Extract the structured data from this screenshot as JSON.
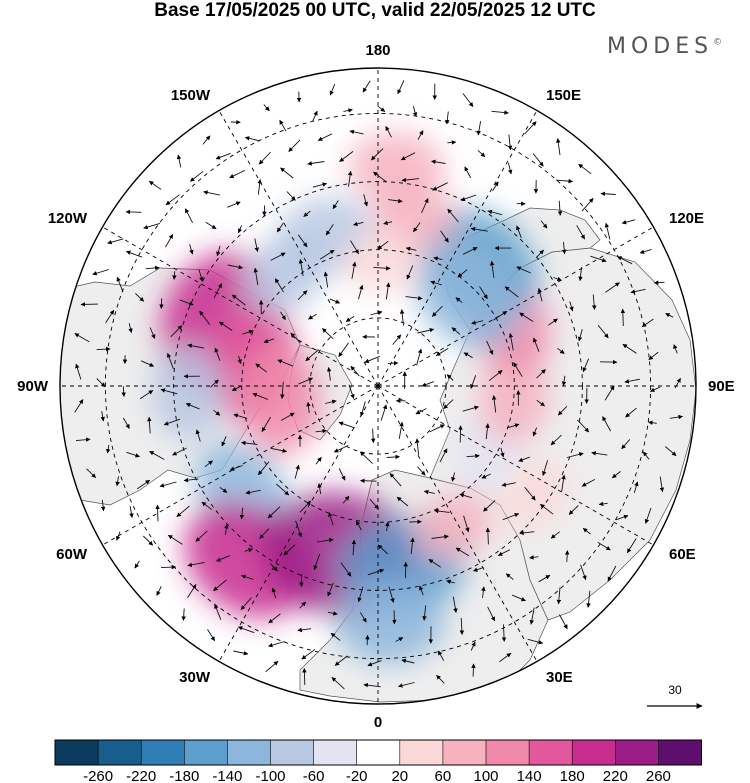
{
  "title": "Base 17/05/2025 00 UTC, valid 22/05/2025 12 UTC",
  "brand": {
    "name": "MODES",
    "mark": "©"
  },
  "longitude_labels": [
    {
      "text": "180",
      "lon": 180
    },
    {
      "text": "150E",
      "lon": 150
    },
    {
      "text": "120E",
      "lon": 120
    },
    {
      "text": "90E",
      "lon": 90
    },
    {
      "text": "60E",
      "lon": 60
    },
    {
      "text": "30E",
      "lon": 30
    },
    {
      "text": "0",
      "lon": 0
    },
    {
      "text": "30W",
      "lon": -30
    },
    {
      "text": "60W",
      "lon": -60
    },
    {
      "text": "90W",
      "lon": -90
    },
    {
      "text": "120W",
      "lon": -120
    },
    {
      "text": "150W",
      "lon": -150
    }
  ],
  "vector_scale": {
    "value": "30"
  },
  "colorbar": {
    "colors": [
      "#0c3b5e",
      "#195d8c",
      "#2f7fb6",
      "#5c9fcd",
      "#8db6dc",
      "#b9c8e3",
      "#e3e3f1",
      "#ffffff",
      "#fbd9d9",
      "#f6b2bf",
      "#f089aa",
      "#e3589d",
      "#c82c8f",
      "#9b1c86",
      "#5e0f6e"
    ],
    "ticks": [
      "-260",
      "-220",
      "-180",
      "-140",
      "-100",
      "-60",
      "-20",
      "20",
      "60",
      "100",
      "140",
      "180",
      "220",
      "260"
    ]
  },
  "anomalies": [
    {
      "lon": -112,
      "lat": 52,
      "value": 200
    },
    {
      "lon": -100,
      "lat": 62,
      "value": 140
    },
    {
      "lon": -82,
      "lat": 68,
      "value": 120
    },
    {
      "lon": -88,
      "lat": 48,
      "value": -90
    },
    {
      "lon": -52,
      "lat": 52,
      "value": -120
    },
    {
      "lon": -37,
      "lat": 42,
      "value": 180
    },
    {
      "lon": -12,
      "lat": 52,
      "value": 240
    },
    {
      "lon": 8,
      "lat": 50,
      "value": -160
    },
    {
      "lon": 3,
      "lat": 38,
      "value": -120
    },
    {
      "lon": 28,
      "lat": 55,
      "value": 60
    },
    {
      "lon": 55,
      "lat": 48,
      "value": 50
    },
    {
      "lon": 60,
      "lat": 62,
      "value": -60
    },
    {
      "lon": 85,
      "lat": 60,
      "value": 80
    },
    {
      "lon": 115,
      "lat": 58,
      "value": 100
    },
    {
      "lon": 140,
      "lat": 55,
      "value": -160
    },
    {
      "lon": 135,
      "lat": 62,
      "value": -140
    },
    {
      "lon": 168,
      "lat": 52,
      "value": 60
    },
    {
      "lon": 175,
      "lat": 42,
      "value": 90
    },
    {
      "lon": -160,
      "lat": 55,
      "value": -100
    },
    {
      "lon": -140,
      "lat": 58,
      "value": -80
    },
    {
      "lon": 178,
      "lat": 63,
      "value": 50
    }
  ]
}
